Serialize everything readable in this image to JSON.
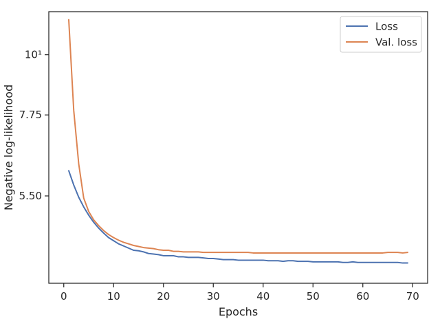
{
  "chart_data": {
    "type": "line",
    "title": "",
    "xlabel": "Epochs",
    "ylabel": "Negative log-likelihood",
    "xlim": [
      -3,
      73
    ],
    "ylim": [
      3.8,
      12.0
    ],
    "y_scale": "log",
    "grid": false,
    "legend_position": "top-right",
    "x_ticks": [
      0,
      10,
      20,
      30,
      40,
      50,
      60,
      70
    ],
    "x_tick_labels": [
      "0",
      "10",
      "20",
      "30",
      "40",
      "50",
      "60",
      "70"
    ],
    "y_ticks": [
      5.5,
      7.75,
      10
    ],
    "y_tick_labels": [
      "5.50",
      "7.75",
      "10¹"
    ],
    "x": [
      1,
      2,
      3,
      4,
      5,
      6,
      7,
      8,
      9,
      10,
      11,
      12,
      13,
      14,
      15,
      16,
      17,
      18,
      19,
      20,
      21,
      22,
      23,
      24,
      25,
      26,
      27,
      28,
      29,
      30,
      31,
      32,
      33,
      34,
      35,
      36,
      37,
      38,
      39,
      40,
      41,
      42,
      43,
      44,
      45,
      46,
      47,
      48,
      49,
      50,
      51,
      52,
      53,
      54,
      55,
      56,
      57,
      58,
      59,
      60,
      61,
      62,
      63,
      64,
      65,
      66,
      67,
      68,
      69
    ],
    "series": [
      {
        "name": "Loss",
        "color": "#4c72b0",
        "values": [
          6.12,
          5.76,
          5.47,
          5.25,
          5.07,
          4.92,
          4.8,
          4.7,
          4.61,
          4.55,
          4.49,
          4.45,
          4.41,
          4.37,
          4.36,
          4.34,
          4.31,
          4.3,
          4.29,
          4.27,
          4.27,
          4.27,
          4.25,
          4.25,
          4.24,
          4.24,
          4.24,
          4.23,
          4.22,
          4.22,
          4.21,
          4.2,
          4.2,
          4.2,
          4.19,
          4.19,
          4.19,
          4.19,
          4.19,
          4.19,
          4.18,
          4.18,
          4.18,
          4.17,
          4.18,
          4.18,
          4.17,
          4.17,
          4.17,
          4.16,
          4.16,
          4.16,
          4.16,
          4.16,
          4.16,
          4.15,
          4.15,
          4.16,
          4.15,
          4.15,
          4.15,
          4.15,
          4.15,
          4.15,
          4.15,
          4.15,
          4.15,
          4.14,
          4.14
        ]
      },
      {
        "name": "Val. loss",
        "color": "#dd8452",
        "values": [
          11.6,
          7.9,
          6.3,
          5.45,
          5.15,
          4.97,
          4.85,
          4.75,
          4.67,
          4.61,
          4.56,
          4.52,
          4.49,
          4.46,
          4.44,
          4.42,
          4.41,
          4.4,
          4.38,
          4.37,
          4.37,
          4.35,
          4.35,
          4.34,
          4.34,
          4.34,
          4.34,
          4.33,
          4.33,
          4.33,
          4.33,
          4.33,
          4.33,
          4.33,
          4.33,
          4.33,
          4.33,
          4.32,
          4.32,
          4.32,
          4.32,
          4.32,
          4.32,
          4.32,
          4.32,
          4.32,
          4.32,
          4.32,
          4.32,
          4.32,
          4.32,
          4.32,
          4.32,
          4.32,
          4.32,
          4.32,
          4.32,
          4.32,
          4.32,
          4.32,
          4.32,
          4.32,
          4.32,
          4.32,
          4.33,
          4.33,
          4.33,
          4.32,
          4.33
        ]
      }
    ]
  }
}
